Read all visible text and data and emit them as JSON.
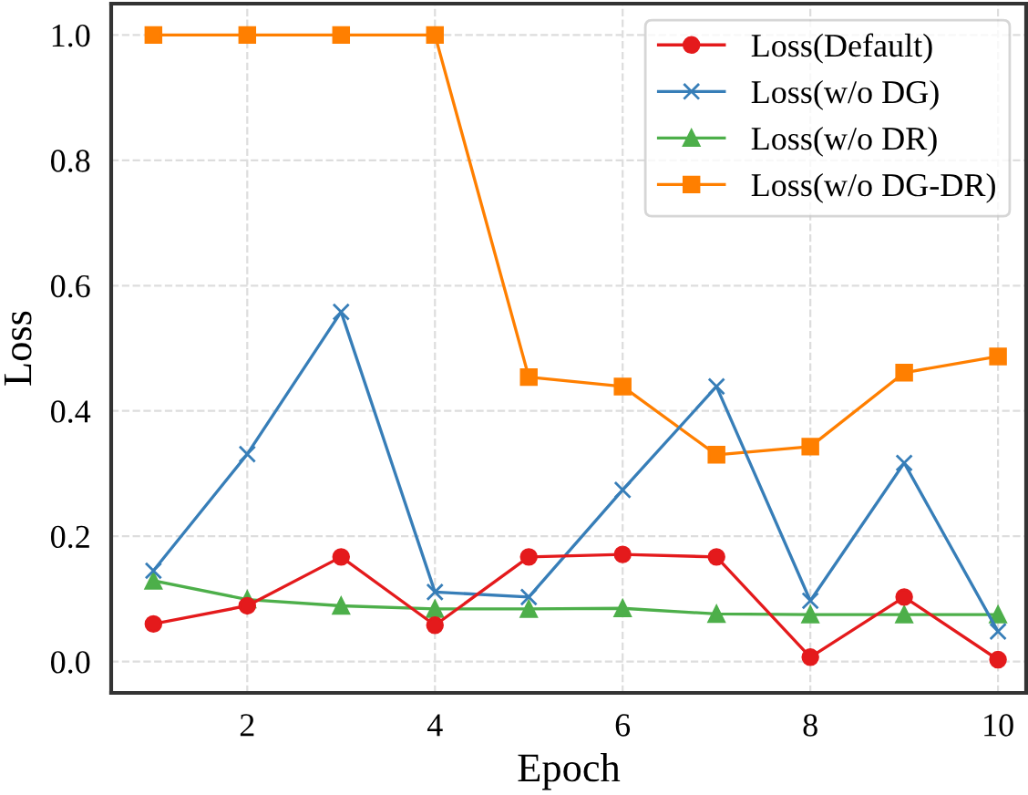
{
  "chart_data": {
    "type": "line",
    "xlabel": "Epoch",
    "ylabel": "Loss",
    "x": [
      1,
      2,
      3,
      4,
      5,
      6,
      7,
      8,
      9,
      10
    ],
    "series": [
      {
        "name": "Loss(Default)",
        "color": "#e41a1c",
        "marker": "circle",
        "values": [
          0.06,
          0.089,
          0.167,
          0.058,
          0.167,
          0.171,
          0.167,
          0.007,
          0.103,
          0.003
        ]
      },
      {
        "name": "Loss(w/o DG)",
        "color": "#377eb8",
        "marker": "cross",
        "values": [
          0.145,
          0.331,
          0.558,
          0.111,
          0.103,
          0.274,
          0.439,
          0.097,
          0.317,
          0.048
        ]
      },
      {
        "name": "Loss(w/o DR)",
        "color": "#4daf4a",
        "marker": "triangle",
        "values": [
          0.129,
          0.099,
          0.089,
          0.084,
          0.084,
          0.085,
          0.076,
          0.075,
          0.075,
          0.075
        ]
      },
      {
        "name": "Loss(w/o DG-DR)",
        "color": "#ff7f00",
        "marker": "square",
        "values": [
          1.0,
          1.0,
          1.0,
          1.0,
          0.454,
          0.439,
          0.33,
          0.343,
          0.461,
          0.487
        ]
      }
    ],
    "xlim": [
      0.55,
      10.3
    ],
    "ylim": [
      -0.05,
      1.05
    ],
    "xticks": [
      2,
      4,
      6,
      8,
      10
    ],
    "yticks": [
      {
        "value": 0,
        "label": "0.0"
      },
      {
        "value": 0.2,
        "label": "0.2"
      },
      {
        "value": 0.4,
        "label": "0.4"
      },
      {
        "value": 0.6,
        "label": "0.6"
      },
      {
        "value": 0.8,
        "label": "0.8"
      },
      {
        "value": 1,
        "label": "1.0"
      }
    ],
    "grid": true,
    "legend": "top right",
    "line_style": "solid"
  }
}
